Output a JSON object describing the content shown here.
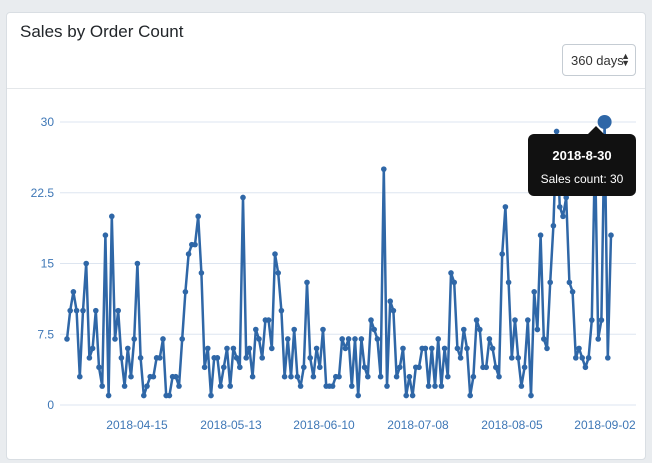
{
  "card": {
    "title": "Sales by Order Count"
  },
  "range_select": {
    "value": "360 days"
  },
  "tooltip": {
    "title": "2018-8-30",
    "label": "Sales count: 30"
  },
  "colors": {
    "line": "#2f67a7",
    "grid": "#dde5f0",
    "tick": "#3e77b6",
    "tooltip_bg": "#111111"
  },
  "chart_data": {
    "type": "line",
    "title": "",
    "xlabel": "",
    "ylabel": "",
    "ylim": [
      0,
      30
    ],
    "yticks": [
      "0",
      "7.5",
      "15",
      "22.5",
      "30"
    ],
    "xtick_labels": [
      "2018-04-15",
      "2018-05-13",
      "2018-06-10",
      "2018-07-08",
      "2018-08-05",
      "2018-09-02"
    ],
    "grid": true,
    "legend": "none",
    "series": [
      {
        "values": [
          7,
          10,
          12,
          10,
          3,
          10,
          15,
          5,
          6,
          10,
          4,
          2,
          18,
          1,
          20,
          7,
          10,
          5,
          2,
          6,
          3,
          7,
          15,
          5,
          1,
          2,
          3,
          3,
          5,
          5,
          7,
          1,
          1,
          3,
          3,
          2,
          7,
          12,
          16,
          17,
          17,
          20,
          14,
          4,
          6,
          1,
          5,
          5,
          2,
          4,
          6,
          2,
          6,
          5,
          4,
          22,
          5,
          6,
          3,
          8,
          7,
          5,
          9,
          9,
          6,
          16,
          14,
          10,
          3,
          7,
          3,
          8,
          3,
          2,
          4,
          13,
          5,
          3,
          6,
          4,
          8,
          2,
          2,
          2,
          3,
          3,
          7,
          6,
          7,
          2,
          7,
          1,
          7,
          4,
          3,
          9,
          8,
          7,
          3,
          25,
          2,
          11,
          10,
          3,
          4,
          6,
          1,
          3,
          1,
          4,
          4,
          6,
          6,
          2,
          6,
          2,
          7,
          2,
          6,
          3,
          14,
          13,
          6,
          5,
          8,
          6,
          1,
          3,
          9,
          8,
          4,
          4,
          7,
          6,
          4,
          3,
          16,
          21,
          13,
          5,
          9,
          5,
          2,
          4,
          9,
          1,
          12,
          8,
          18,
          7,
          6,
          13,
          19,
          29,
          21,
          20,
          22,
          13,
          12,
          5,
          6,
          5,
          4,
          5,
          9,
          27,
          7,
          9,
          30,
          5,
          18
        ]
      }
    ]
  }
}
